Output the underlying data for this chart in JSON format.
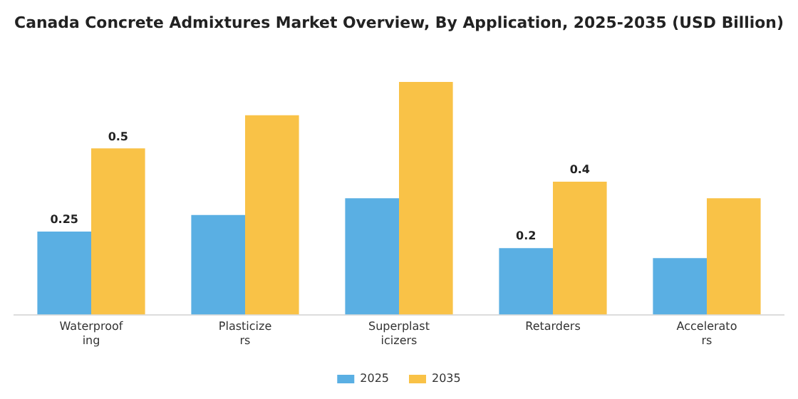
{
  "chart_data": {
    "type": "bar",
    "title": "Canada Concrete Admixtures Market Overview, By Application, 2025-2035 (USD Billion)",
    "categories": [
      "Waterproofing",
      "Plasticizers",
      "Superplasticizers",
      "Retarders",
      "Accelerators"
    ],
    "series": [
      {
        "name": "2025",
        "color": "#5aafe3",
        "values": [
          0.25,
          0.3,
          0.35,
          0.2,
          0.17
        ],
        "value_labels": [
          "0.25",
          null,
          null,
          "0.2",
          null
        ]
      },
      {
        "name": "2035",
        "color": "#f9c247",
        "values": [
          0.5,
          0.6,
          0.7,
          0.4,
          0.35
        ],
        "value_labels": [
          "0.5",
          null,
          null,
          "0.4",
          null
        ]
      }
    ],
    "legend": "bottom",
    "grid": false,
    "tick_labels": "x"
  }
}
